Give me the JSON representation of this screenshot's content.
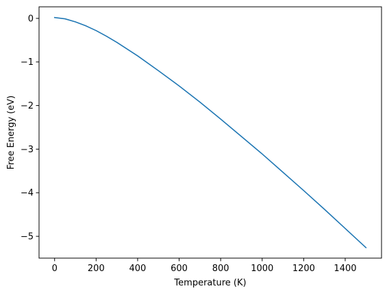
{
  "chart_data": {
    "type": "line",
    "title": "",
    "xlabel": "Temperature (K)",
    "ylabel": "Free Energy (eV)",
    "xlim": [
      -75,
      1575
    ],
    "ylim": [
      -5.5,
      0.265
    ],
    "xticks": [
      0,
      200,
      400,
      600,
      800,
      1000,
      1200,
      1400
    ],
    "xtick_labels": [
      "0",
      "200",
      "400",
      "600",
      "800",
      "1000",
      "1200",
      "1400"
    ],
    "yticks": [
      0,
      -1,
      -2,
      -3,
      -4,
      -5
    ],
    "ytick_labels": [
      "0",
      "−1",
      "−2",
      "−3",
      "−4",
      "−5"
    ],
    "grid": false,
    "legend": "none",
    "series": [
      {
        "color": "#1f77b4",
        "x": [
          0,
          50,
          100,
          150,
          200,
          250,
          300,
          400,
          500,
          600,
          700,
          800,
          900,
          1000,
          1100,
          1200,
          1300,
          1400,
          1500
        ],
        "y": [
          0.02,
          -0.01,
          -0.08,
          -0.17,
          -0.28,
          -0.41,
          -0.55,
          -0.86,
          -1.2,
          -1.55,
          -1.92,
          -2.31,
          -2.71,
          -3.11,
          -3.53,
          -3.95,
          -4.38,
          -4.82,
          -5.26
        ]
      }
    ]
  }
}
